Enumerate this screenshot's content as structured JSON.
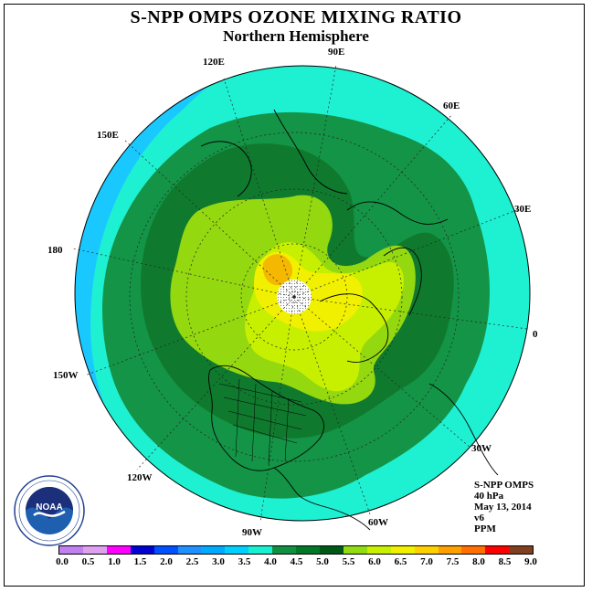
{
  "title": "S-NPP OMPS OZONE MIXING RATIO",
  "subtitle": "Northern Hemisphere",
  "longitude_labels": {
    "lon_90e": "90E",
    "lon_60e": "60E",
    "lon_30e": "30E",
    "lon_0": "0",
    "lon_30w": "30W",
    "lon_60w": "60W",
    "lon_90w": "90W",
    "lon_120w": "120W",
    "lon_150w": "150W",
    "lon_180": "180",
    "lon_150e": "150E",
    "lon_120e": "120E"
  },
  "info": {
    "instrument": "S-NPP OMPS",
    "level": "40 hPa",
    "date": "May 13, 2014",
    "version": "v6",
    "units": "PPM"
  },
  "colorbar": {
    "labels": [
      "0.0",
      "0.5",
      "1.0",
      "1.5",
      "2.0",
      "2.5",
      "3.0",
      "3.5",
      "4.0",
      "4.5",
      "5.0",
      "5.5",
      "6.0",
      "6.5",
      "7.0",
      "7.5",
      "8.0",
      "8.5",
      "9.0"
    ],
    "colors": [
      "#c080f0",
      "#e0a0f0",
      "#ff00ff",
      "#0000d0",
      "#0050ff",
      "#1e90ff",
      "#00aaff",
      "#00d0ff",
      "#18f0d0",
      "#109040",
      "#007828",
      "#005818",
      "#90dc10",
      "#c8f000",
      "#f0f000",
      "#ffd000",
      "#ffa000",
      "#ff7000",
      "#ff0000",
      "#804020"
    ]
  },
  "logo_text": "NOAA",
  "logo_ring_text": "NATIONAL OCEANIC AND ATMOSPHERIC ADMINISTRATION · U.S. DEPARTMENT OF COMMERCE",
  "legend_colors": {
    "c3_0": "#18c8ff",
    "c3_5": "#1ef0d2",
    "c4_0": "#149446",
    "c4_5": "#0f7a2e",
    "c5_0": "#94d810",
    "c5_5": "#c6f000",
    "c6_0": "#f0f000",
    "c6_5": "#f4b800"
  }
}
